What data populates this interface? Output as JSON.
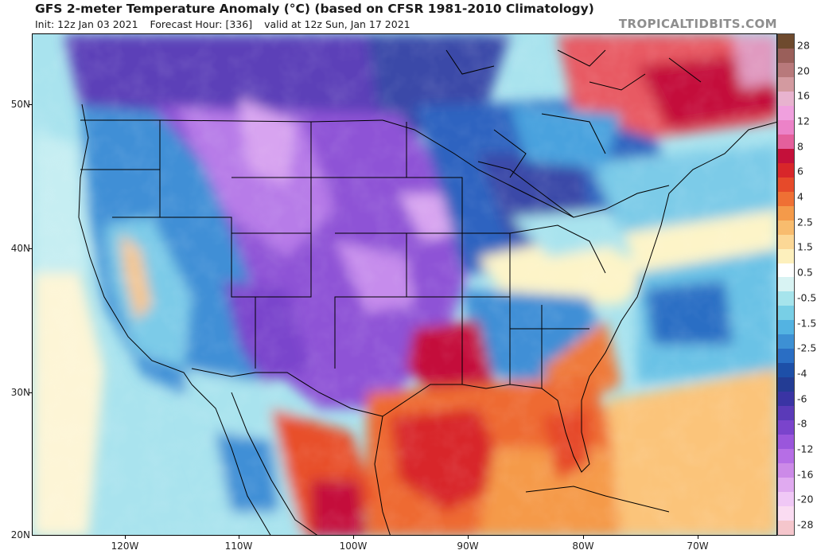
{
  "header": {
    "title": "GFS 2-meter Temperature Anomaly (°C) (based on CFSR 1981-2010 Climatology)",
    "init": "Init: 12z Jan 03 2021",
    "forecast_hour": "Forecast Hour: [336]",
    "valid": "valid at 12z Sun, Jan 17 2021",
    "brand": "TROPICALTIDBITS.COM"
  },
  "axes": {
    "lat_labels": [
      "50N",
      "40N",
      "30N",
      "20N"
    ],
    "lon_labels": [
      "120W",
      "110W",
      "100W",
      "90W",
      "80W",
      "70W"
    ]
  },
  "colorbar": {
    "labels": [
      "28",
      "20",
      "16",
      "12",
      "8",
      "6",
      "4",
      "2.5",
      "1.5",
      "0.5",
      "-0.5",
      "-1.5",
      "-2.5",
      "-4",
      "-6",
      "-8",
      "-12",
      "-16",
      "-20",
      "-28"
    ],
    "colors": [
      "#6e4a2e",
      "#9a5f5a",
      "#b8797b",
      "#d39aa0",
      "#e8b3cf",
      "#f0a0de",
      "#ec82c8",
      "#e45f9c",
      "#c4103a",
      "#d8262a",
      "#e64a2a",
      "#ef7034",
      "#f49a4a",
      "#f8bc6e",
      "#fcd896",
      "#fdf0bd",
      "#ffffff",
      "#d8f3f3",
      "#a6e4ec",
      "#78cfe6",
      "#53b3e2",
      "#3d90d4",
      "#2a6ec4",
      "#1d4fa8",
      "#233c94",
      "#3a34a4",
      "#5a3ab8",
      "#7a44cc",
      "#9a56dc",
      "#b66ee6",
      "#cc8ae8",
      "#e0aaf0",
      "#f0c8f6",
      "#fadcf2",
      "#f5c6cc"
    ]
  }
}
